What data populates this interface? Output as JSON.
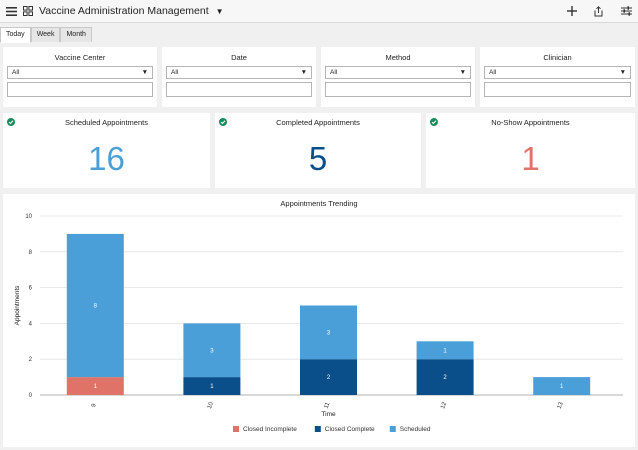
{
  "app": {
    "title": "Vaccine Administration Management",
    "icons": [
      "menu-icon",
      "grid-icon",
      "plus-icon",
      "share-icon",
      "settings-sliders-icon"
    ]
  },
  "tabs": [
    {
      "label": "Today",
      "active": true
    },
    {
      "label": "Week",
      "active": false
    },
    {
      "label": "Month",
      "active": false
    }
  ],
  "filters": [
    {
      "label": "Vaccine Center",
      "value": "All"
    },
    {
      "label": "Date",
      "value": "All"
    },
    {
      "label": "Method",
      "value": "All"
    },
    {
      "label": "Clinician",
      "value": "All"
    }
  ],
  "kpis": [
    {
      "title": "Scheduled Appointments",
      "value": "16",
      "color": "#4a9fd8"
    },
    {
      "title": "Completed Appointments",
      "value": "5",
      "color": "#0a4f8a"
    },
    {
      "title": "No-Show Appointments",
      "value": "1",
      "color": "#e07368"
    }
  ],
  "colors": {
    "check": "#1a8b5c",
    "closed_incomplete": "#e07368",
    "closed_complete": "#0a4f8a",
    "scheduled": "#4a9fd8"
  },
  "chart_data": {
    "type": "bar",
    "stacked": true,
    "title": "Appointments Trending",
    "xlabel": "Time",
    "ylabel": "Appointments",
    "categories": [
      "9",
      "10",
      "11",
      "12",
      "13"
    ],
    "ylim": [
      0,
      10
    ],
    "yticks": [
      0,
      2,
      4,
      6,
      8,
      10
    ],
    "series": [
      {
        "name": "Closed Incomplete",
        "color": "#e07368",
        "values": [
          1,
          0,
          0,
          0,
          0
        ]
      },
      {
        "name": "Closed Complete",
        "color": "#0a4f8a",
        "values": [
          0,
          1,
          2,
          2,
          0
        ]
      },
      {
        "name": "Scheduled",
        "color": "#4a9fd8",
        "values": [
          8,
          3,
          3,
          1,
          1
        ]
      }
    ],
    "legend": "bottom-center",
    "grid": true
  }
}
